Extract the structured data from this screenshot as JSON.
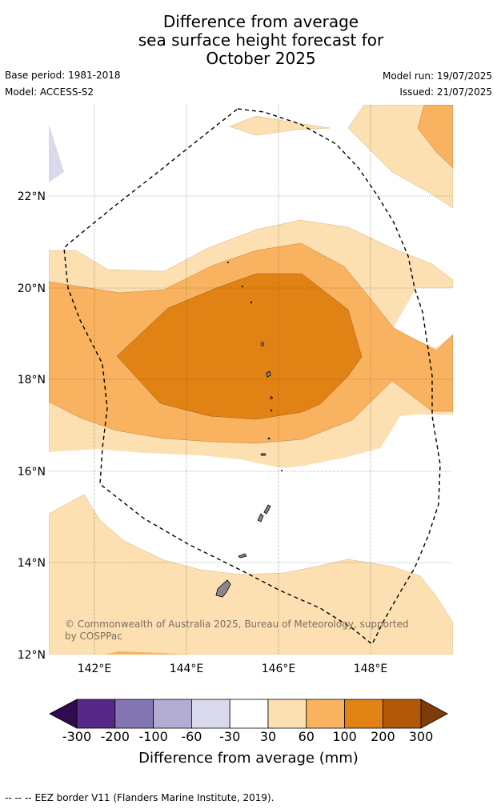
{
  "title": {
    "line1": "Difference from average",
    "line2": "sea surface height forecast for",
    "line3": "October 2025"
  },
  "meta": {
    "base_period": "Base period: 1981-2018",
    "model": "Model: ACCESS-S2",
    "model_run": "Model run: 19/07/2025",
    "issued": "Issued: 21/07/2025"
  },
  "map": {
    "lat_labels": [
      "22°N",
      "20°N",
      "18°N",
      "16°N",
      "14°N",
      "12°N"
    ],
    "lon_labels": [
      "142°E",
      "144°E",
      "146°E",
      "148°E"
    ],
    "copyright_line1": "© Commonwealth of Australia 2025, Bureau of Meteorology, supported",
    "copyright_line2": "by COSPPac",
    "lon_range": [
      141,
      149.8
    ],
    "lat_range": [
      12,
      23.95
    ],
    "colors": {
      "neg_300": "#2f0b4f",
      "neg_200": "#562887",
      "neg_100": "#8375b1",
      "neg_60": "#b2abd2",
      "neg_30": "#d8daeb",
      "near_zero": "#ffffff",
      "pos_30": "#fde0b2",
      "pos_60": "#f9b25f",
      "pos_100": "#e08214",
      "pos_200": "#b35806",
      "pos_300": "#7f3b08"
    }
  },
  "colorbar": {
    "ticks": [
      "-300",
      "-200",
      "-100",
      "-60",
      "-30",
      "30",
      "60",
      "100",
      "200",
      "300"
    ],
    "label": "Difference from average (mm)"
  },
  "footer": {
    "legend_symbol": "--  --  --",
    "legend_text": "EEZ border V11 (Flanders Marine Institute, 2019)."
  }
}
